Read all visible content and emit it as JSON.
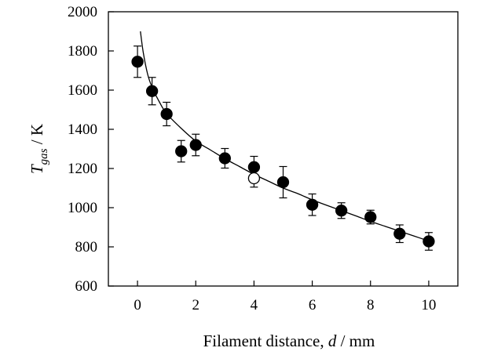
{
  "chart_data": {
    "type": "scatter",
    "xlabel": {
      "prefix": "Filament distance, ",
      "var": "d",
      "suffix": " / mm"
    },
    "ylabel": {
      "var": "T",
      "sub": "gas",
      "suffix": " / K"
    },
    "xlim": [
      -1,
      11
    ],
    "ylim": [
      600,
      2000
    ],
    "xticks": [
      0,
      2,
      4,
      6,
      8,
      10
    ],
    "yticks": [
      600,
      800,
      1000,
      1200,
      1400,
      1600,
      1800,
      2000
    ],
    "grid": false,
    "series": [
      {
        "marker": "filled-circle",
        "points": [
          {
            "x": 0,
            "y": 1745,
            "err": 80
          },
          {
            "x": 0.5,
            "y": 1595,
            "err": 70
          },
          {
            "x": 1,
            "y": 1478,
            "err": 60
          },
          {
            "x": 1.5,
            "y": 1288,
            "err": 55
          },
          {
            "x": 2,
            "y": 1320,
            "err": 55
          },
          {
            "x": 3,
            "y": 1252,
            "err": 50
          },
          {
            "x": 4,
            "y": 1207,
            "err": 55
          },
          {
            "x": 5,
            "y": 1130,
            "err": 80
          },
          {
            "x": 6,
            "y": 1015,
            "err": 55
          },
          {
            "x": 7,
            "y": 985,
            "err": 40
          },
          {
            "x": 8,
            "y": 952,
            "err": 35
          },
          {
            "x": 9,
            "y": 867,
            "err": 45
          },
          {
            "x": 10,
            "y": 828,
            "err": 45
          }
        ]
      },
      {
        "marker": "open-circle",
        "points": [
          {
            "x": 4,
            "y": 1150,
            "err": 45
          }
        ]
      }
    ],
    "fit_curve": {
      "style": "solid",
      "points": [
        [
          0.1,
          1900
        ],
        [
          0.2,
          1790
        ],
        [
          0.35,
          1680
        ],
        [
          0.5,
          1615
        ],
        [
          0.75,
          1540
        ],
        [
          1,
          1480
        ],
        [
          1.5,
          1405
        ],
        [
          2,
          1340
        ],
        [
          2.5,
          1295
        ],
        [
          3,
          1250
        ],
        [
          3.5,
          1210
        ],
        [
          4,
          1170
        ],
        [
          4.5,
          1135
        ],
        [
          5,
          1100
        ],
        [
          5.5,
          1072
        ],
        [
          6,
          1040
        ],
        [
          6.5,
          1012
        ],
        [
          7,
          985
        ],
        [
          7.5,
          958
        ],
        [
          8,
          930
        ],
        [
          8.5,
          905
        ],
        [
          9,
          880
        ],
        [
          9.5,
          855
        ],
        [
          10,
          830
        ]
      ]
    }
  }
}
